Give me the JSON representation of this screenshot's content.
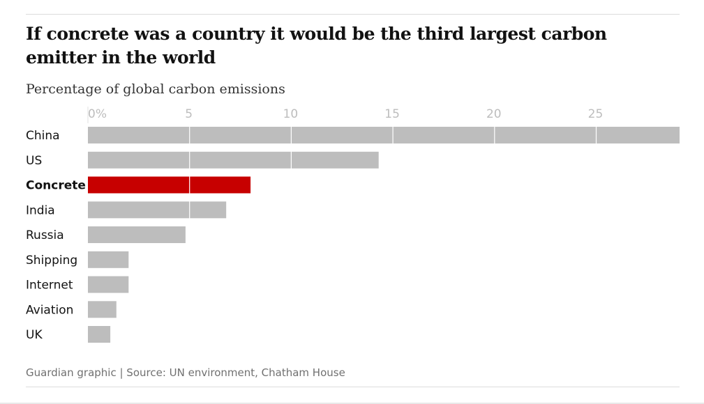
{
  "title": "If concrete was a country it would be the third largest carbon emitter in the world",
  "subtitle": "Percentage of global carbon emissions",
  "source": "Guardian graphic | Source: UN environment, Chatham House",
  "colors": {
    "bar": "#bdbdbd",
    "highlight": "#c70000",
    "gridline": "#ffffff",
    "tick_text": "#bdbdbd",
    "label_text": "#121212"
  },
  "chart_data": {
    "type": "bar",
    "orientation": "horizontal",
    "title": "If concrete was a country it would be the third largest carbon emitter in the world",
    "subtitle": "Percentage of global carbon emissions",
    "categories": [
      "China",
      "US",
      "Concrete",
      "India",
      "Russia",
      "Shipping",
      "Internet",
      "Aviation",
      "UK"
    ],
    "values": [
      29.1,
      14.3,
      8.0,
      6.8,
      4.8,
      2.0,
      2.0,
      1.4,
      1.1
    ],
    "highlight": "Concrete",
    "xlim": [
      0,
      29.1
    ],
    "ticks": [
      0,
      5,
      10,
      15,
      20,
      25
    ],
    "tick_labels": [
      "0%",
      "5",
      "10",
      "15",
      "20",
      "25"
    ],
    "grid": true,
    "legend": "none"
  }
}
